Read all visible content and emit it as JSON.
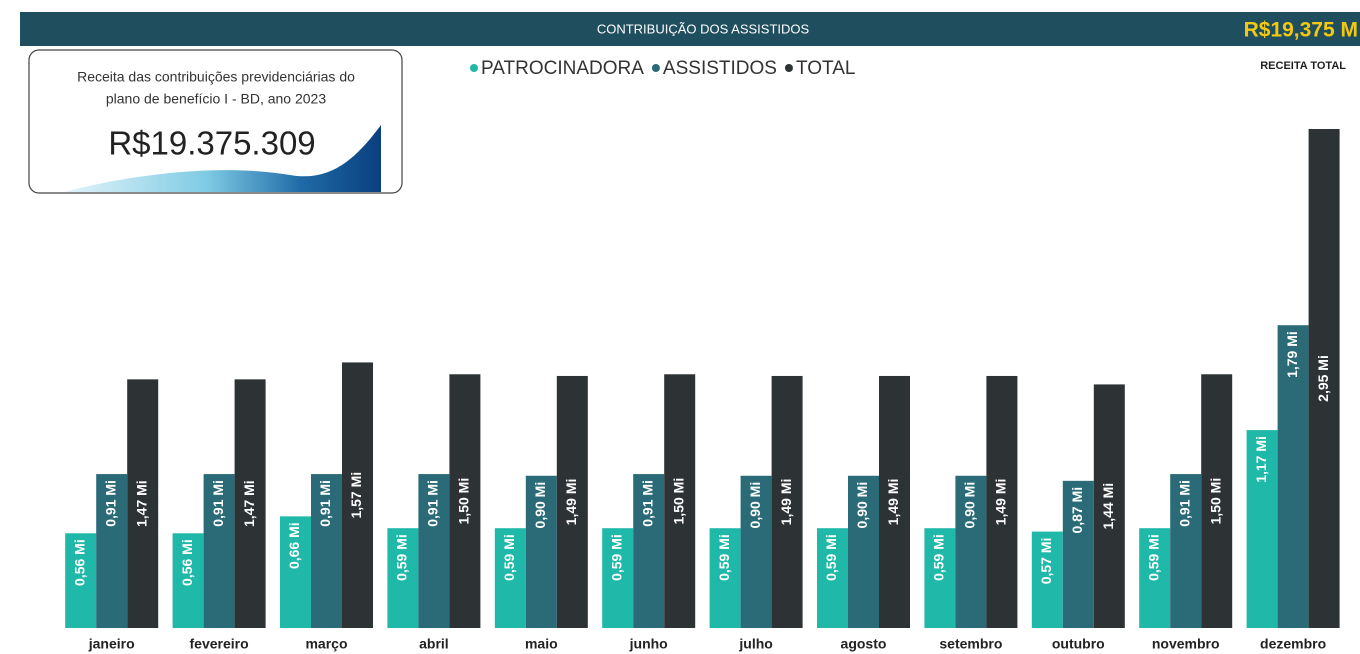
{
  "header": {
    "title": "CONTRIBUIÇÃO DOS ASSISTIDOS",
    "kpi": "R$19,375 M",
    "kpi_label": "RECEITA TOTAL"
  },
  "card": {
    "lines": [
      "Receita das contribuições previdenciárias do",
      "plano de benefício I - BD, ano 2023"
    ],
    "value": "R$19.375.309"
  },
  "chart_data": {
    "type": "bar",
    "categories": [
      "janeiro",
      "fevereiro",
      "março",
      "abril",
      "maio",
      "junho",
      "julho",
      "agosto",
      "setembro",
      "outubro",
      "novembro",
      "dezembro"
    ],
    "series": [
      {
        "name": "PATROCINADORA",
        "color": "#1fb8a9",
        "values": [
          0.56,
          0.56,
          0.66,
          0.59,
          0.59,
          0.59,
          0.59,
          0.59,
          0.59,
          0.57,
          0.59,
          1.17
        ],
        "value_labels": [
          "0,56 Mi",
          "0,56 Mi",
          "0,66 Mi",
          "0,59 Mi",
          "0,59 Mi",
          "0,59 Mi",
          "0,59 Mi",
          "0,59 Mi",
          "0,59 Mi",
          "0,57 Mi",
          "0,59 Mi",
          "1,17 Mi"
        ]
      },
      {
        "name": "ASSISTIDOS",
        "color": "#2a6b77",
        "values": [
          0.91,
          0.91,
          0.91,
          0.91,
          0.9,
          0.91,
          0.9,
          0.9,
          0.9,
          0.87,
          0.91,
          1.79
        ],
        "value_labels": [
          "0,91 Mi",
          "0,91 Mi",
          "0,91 Mi",
          "0,91 Mi",
          "0,90 Mi",
          "0,91 Mi",
          "0,90 Mi",
          "0,90 Mi",
          "0,90 Mi",
          "0,87 Mi",
          "0,91 Mi",
          "1,79 Mi"
        ]
      },
      {
        "name": "TOTAL",
        "color": "#2d3234",
        "values": [
          1.47,
          1.47,
          1.57,
          1.5,
          1.49,
          1.5,
          1.49,
          1.49,
          1.49,
          1.44,
          1.5,
          2.95
        ],
        "value_labels": [
          "1,47 Mi",
          "1,47 Mi",
          "1,57 Mi",
          "1,50 Mi",
          "1,49 Mi",
          "1,50 Mi",
          "1,49 Mi",
          "1,49 Mi",
          "1,49 Mi",
          "1,44 Mi",
          "1,50 Mi",
          "2,95 Mi"
        ]
      }
    ]
  }
}
